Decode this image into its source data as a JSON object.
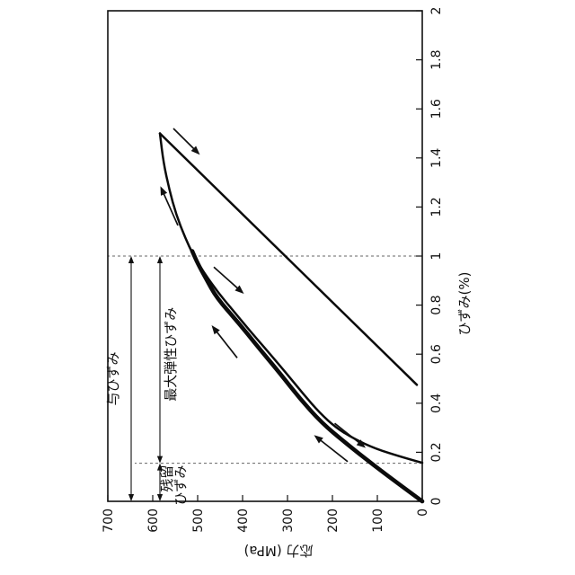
{
  "figure": {
    "background": "#ffffff",
    "ink_color": "#111111",
    "orientation_note": "entire chart rotated 90 degrees counterclockwise"
  },
  "chart_data": {
    "type": "line",
    "title": "",
    "xlabel": "ひずみ(%)",
    "ylabel": "応力 (MPa)",
    "xlim": [
      0,
      2
    ],
    "ylim": [
      0,
      700
    ],
    "grid": false,
    "legend": "none",
    "x_ticks": {
      "values": [
        0,
        0.2,
        0.4,
        0.6,
        0.8,
        1,
        1.2,
        1.4,
        1.6,
        1.8,
        2
      ],
      "labels": [
        "0",
        "0.2",
        "0.4",
        "0.6",
        "0.8",
        "1",
        "1.2",
        "1.4",
        "1.6",
        "1.8",
        "2"
      ]
    },
    "y_ticks": {
      "values": [
        0,
        100,
        200,
        300,
        400,
        500,
        600,
        700
      ],
      "labels": [
        "0",
        "100",
        "200",
        "300",
        "400",
        "500",
        "600",
        "700"
      ]
    },
    "readings": {
      "applied_strain_pct": 1.0,
      "residual_strain_pct": 0.155,
      "peak_point": {
        "strain_pct": 1.5,
        "stress_mpa": 584
      },
      "stress_at_applied_strain_mpa": 508
    },
    "series": [
      {
        "name": "initial-loading-curve",
        "style": "thick",
        "points": [
          [
            0,
            0
          ],
          [
            0.07,
            52
          ],
          [
            0.15,
            110
          ],
          [
            0.24,
            172
          ],
          [
            0.32,
            224
          ],
          [
            0.42,
            273
          ],
          [
            0.52,
            316
          ],
          [
            0.63,
            366
          ],
          [
            0.73,
            410
          ],
          [
            0.83,
            458
          ],
          [
            0.91,
            482
          ],
          [
            0.97,
            500
          ],
          [
            1.02,
            512
          ]
        ]
      },
      {
        "name": "hysteresis-curve-to-peak",
        "style": "medium",
        "points": [
          [
            0.157,
            0
          ],
          [
            0.18,
            45
          ],
          [
            0.215,
            105
          ],
          [
            0.255,
            152
          ],
          [
            0.3,
            192
          ],
          [
            0.36,
            228
          ],
          [
            0.44,
            266
          ],
          [
            0.53,
            306
          ],
          [
            0.62,
            348
          ],
          [
            0.7,
            386
          ],
          [
            0.78,
            422
          ],
          [
            0.85,
            454
          ],
          [
            0.93,
            485
          ],
          [
            1.0,
            509
          ],
          [
            1.08,
            529
          ],
          [
            1.17,
            548
          ],
          [
            1.27,
            563
          ],
          [
            1.38,
            576
          ],
          [
            1.5,
            584
          ]
        ]
      },
      {
        "name": "unloading-line-from-peak",
        "style": "medium",
        "points": [
          [
            1.5,
            584
          ],
          [
            0.475,
            12
          ]
        ]
      }
    ],
    "guides": [
      {
        "name": "applied-strain-guide",
        "x": 1.0,
        "y0": 0,
        "y1": 700
      },
      {
        "name": "residual-strain-guide",
        "x": 0.155,
        "y0": 0,
        "y1": 640
      }
    ],
    "span_arrows": [
      {
        "name": "given-strain",
        "label_lines": [
          "与ひずみ"
        ],
        "stress": 648,
        "from": 0,
        "to": 1.0,
        "label_at": {
          "x": 0.5,
          "y": 678
        },
        "anchor": "middle"
      },
      {
        "name": "max-elastic-strain",
        "label_lines": [
          "最大弾性ひずみ"
        ],
        "stress": 584,
        "from": 0.155,
        "to": 1.0,
        "label_at": {
          "x": 0.6,
          "y": 550
        },
        "anchor": "middle"
      },
      {
        "name": "residual-strain",
        "label_lines": [
          "残留",
          "ひずみ"
        ],
        "stress": 584,
        "from": 0,
        "to": 0.155,
        "label_at": {
          "x": 0.148,
          "y": 558
        },
        "anchor": "end"
      }
    ],
    "flow_arrows": [
      {
        "name": "loading-direction-near-peak",
        "from": [
          1.125,
          544
        ],
        "to": [
          1.285,
          583
        ],
        "dir": "loading"
      },
      {
        "name": "unloading-direction-near-peak",
        "from": [
          1.52,
          554
        ],
        "to": [
          1.413,
          495
        ],
        "dir": "unloading"
      },
      {
        "name": "loading-direction-mid",
        "from": [
          0.585,
          412
        ],
        "to": [
          0.718,
          469
        ],
        "dir": "loading"
      },
      {
        "name": "unloading-direction-mid",
        "from": [
          0.955,
          464
        ],
        "to": [
          0.846,
          397
        ],
        "dir": "unloading"
      },
      {
        "name": "loading-direction-low",
        "from": [
          0.162,
          166
        ],
        "to": [
          0.27,
          241
        ],
        "dir": "loading"
      },
      {
        "name": "unloading-direction-low",
        "from": [
          0.318,
          195
        ],
        "to": [
          0.218,
          126
        ],
        "dir": "unloading"
      }
    ]
  }
}
